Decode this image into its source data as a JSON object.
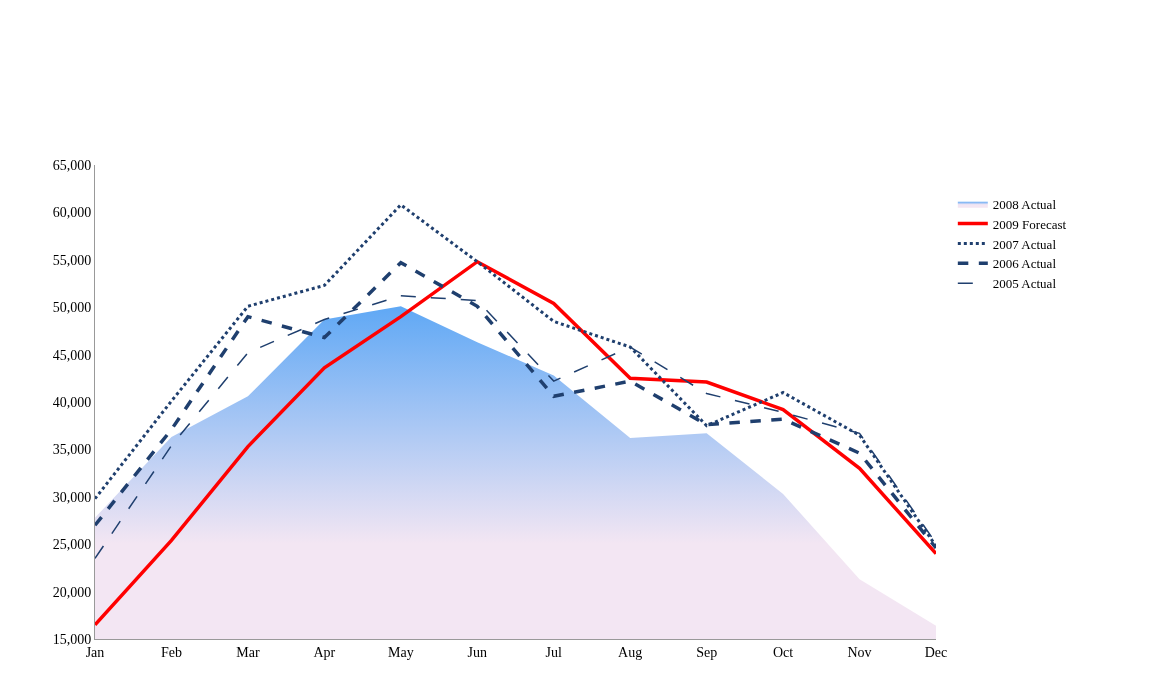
{
  "chart_data": {
    "type": "line",
    "categories": [
      "Jan",
      "Feb",
      "Mar",
      "Apr",
      "May",
      "Jun",
      "Jul",
      "Aug",
      "Sep",
      "Oct",
      "Nov",
      "Dec"
    ],
    "series": [
      {
        "name": "2008 Actual",
        "type": "area",
        "color": "#5fa8f5",
        "values": [
          27800,
          36300,
          40600,
          48700,
          50100,
          46300,
          42800,
          36200,
          36700,
          30300,
          21300,
          16400
        ]
      },
      {
        "name": "2009 Forecast",
        "color": "#ff0000",
        "line_style": "solid",
        "values": [
          16500,
          25400,
          35300,
          43600,
          49000,
          54800,
          50400,
          42500,
          42100,
          39200,
          33000,
          24000
        ]
      },
      {
        "name": "2007 Actual",
        "color": "#1f3f6e",
        "line_style": "dotted",
        "values": [
          29800,
          40100,
          50100,
          52300,
          60800,
          54800,
          48500,
          45800,
          37500,
          41000,
          36500,
          24800
        ]
      },
      {
        "name": "2006 Actual",
        "color": "#1f3f6e",
        "line_style": "dashed",
        "values": [
          27000,
          37100,
          49000,
          46800,
          54700,
          50100,
          40600,
          42200,
          37600,
          38200,
          34600,
          24600
        ]
      },
      {
        "name": "2005 Actual",
        "color": "#1f3f6e",
        "line_style": "longdash",
        "values": [
          23500,
          35400,
          45200,
          48700,
          51200,
          50700,
          42200,
          45800,
          40900,
          38900,
          36700,
          25100
        ]
      }
    ],
    "ylim": [
      15000,
      65000
    ],
    "yticks": [
      {
        "value": 15000,
        "label": "15,000"
      },
      {
        "value": 20000,
        "label": "20,000"
      },
      {
        "value": 25000,
        "label": "25,000"
      },
      {
        "value": 30000,
        "label": "30,000"
      },
      {
        "value": 35000,
        "label": "35,000"
      },
      {
        "value": 40000,
        "label": "40,000"
      },
      {
        "value": 45000,
        "label": "45,000"
      },
      {
        "value": 50000,
        "label": "50,000"
      },
      {
        "value": 55000,
        "label": "55,000"
      },
      {
        "value": 60000,
        "label": "60,000"
      },
      {
        "value": 65000,
        "label": "65,000"
      }
    ],
    "legend": "top right",
    "marker": "none"
  }
}
